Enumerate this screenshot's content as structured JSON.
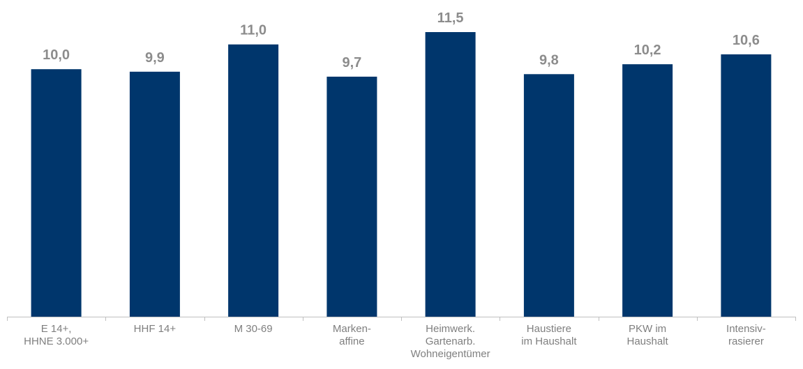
{
  "chart_data": {
    "type": "bar",
    "categories": [
      [
        "E 14+,",
        "HHNE 3.000+"
      ],
      [
        "HHF 14+"
      ],
      [
        "M 30-69"
      ],
      [
        "Marken-",
        "affine"
      ],
      [
        "Heimwerk.",
        "Gartenarb.",
        "Wohneigentümer"
      ],
      [
        "Haustiere",
        "im Haushalt"
      ],
      [
        "PKW im",
        "Haushalt"
      ],
      [
        "Intensiv-",
        "rasierer"
      ]
    ],
    "values": [
      10.0,
      9.9,
      11.0,
      9.7,
      11.5,
      9.8,
      10.2,
      10.6
    ],
    "value_labels": [
      "10,0",
      "9,9",
      "11,0",
      "9,7",
      "11,5",
      "9,8",
      "10,2",
      "10,6"
    ],
    "ylim": [
      0,
      12.0
    ],
    "grid": false,
    "legend": "none",
    "colors": {
      "bar": "#00366c",
      "value_label": "#8c8c8c",
      "category_label": "#7f7f7f",
      "axis": "#bfbfbf"
    }
  }
}
